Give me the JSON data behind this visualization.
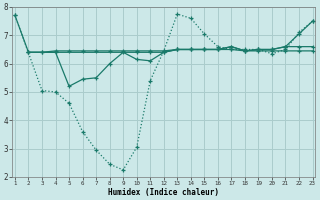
{
  "background_color": "#cce8e8",
  "grid_color": "#aacccc",
  "line_color": "#1a7a6a",
  "xlabel": "Humidex (Indice chaleur)",
  "xlim": [
    1,
    23
  ],
  "ylim": [
    2,
    8
  ],
  "xticks": [
    1,
    2,
    3,
    4,
    5,
    6,
    7,
    8,
    9,
    10,
    11,
    12,
    13,
    14,
    15,
    16,
    17,
    18,
    19,
    20,
    21,
    22,
    23
  ],
  "yticks": [
    2,
    3,
    4,
    5,
    6,
    7,
    8
  ],
  "lines": [
    {
      "x": [
        1,
        2,
        3,
        4,
        5,
        6,
        7,
        8,
        9,
        10,
        11,
        12,
        13,
        14,
        15,
        16,
        17,
        18,
        19,
        20,
        21,
        22,
        23
      ],
      "y": [
        7.7,
        6.4,
        6.4,
        6.45,
        6.45,
        6.45,
        6.45,
        6.45,
        6.45,
        6.45,
        6.45,
        6.45,
        6.5,
        6.5,
        6.5,
        6.5,
        6.5,
        6.45,
        6.45,
        6.45,
        6.45,
        6.45,
        6.45
      ],
      "style": "-",
      "marker": "+"
    },
    {
      "x": [
        1,
        3,
        4,
        5,
        6,
        7,
        8,
        9,
        10,
        11,
        12,
        13,
        14,
        15,
        16,
        17,
        18,
        19,
        20,
        21,
        22,
        23
      ],
      "y": [
        7.7,
        5.05,
        5.0,
        4.6,
        3.6,
        2.95,
        2.45,
        2.25,
        3.05,
        5.4,
        6.45,
        7.75,
        7.6,
        7.05,
        6.6,
        6.5,
        6.5,
        6.5,
        6.35,
        6.5,
        7.1,
        7.5
      ],
      "style": ":",
      "marker": "+"
    },
    {
      "x": [
        2,
        3,
        4,
        5,
        6,
        7,
        8,
        9,
        10,
        11,
        12,
        13,
        14,
        15,
        16,
        17,
        18,
        19,
        20,
        21,
        22,
        23
      ],
      "y": [
        6.4,
        6.4,
        6.4,
        5.2,
        5.45,
        5.5,
        6.0,
        6.4,
        6.15,
        6.1,
        6.4,
        6.5,
        6.5,
        6.5,
        6.5,
        6.6,
        6.45,
        6.5,
        6.5,
        6.6,
        6.6,
        6.6
      ],
      "style": "-",
      "marker": "+"
    },
    {
      "x": [
        2,
        10,
        11,
        12,
        13,
        14,
        15,
        16,
        17,
        18,
        19,
        20,
        21,
        22,
        23
      ],
      "y": [
        6.4,
        6.4,
        6.4,
        6.4,
        6.5,
        6.5,
        6.5,
        6.5,
        6.6,
        6.45,
        6.5,
        6.5,
        6.6,
        7.05,
        7.5
      ],
      "style": "-",
      "marker": "+"
    }
  ]
}
